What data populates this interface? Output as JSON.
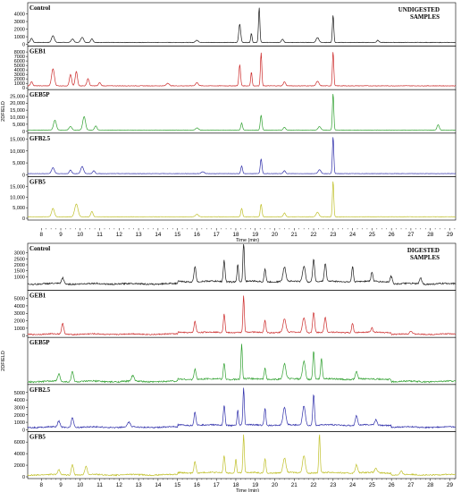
{
  "x_axis": {
    "ticks": [
      "8",
      "9",
      "10",
      "11",
      "12",
      "13",
      "14",
      "15",
      "16",
      "17",
      "18",
      "19",
      "20",
      "21",
      "22",
      "23",
      "24",
      "25",
      "26",
      "27",
      "28",
      "29"
    ],
    "min": 7.3,
    "max": 29.3
  },
  "groups": [
    {
      "id": "undigested",
      "title_lines": [
        "UNDIGESTED",
        "SAMPLES"
      ],
      "x_label": "Time (min)",
      "y_axis_label": "2DFIELD",
      "panels": [
        {
          "name": "Control",
          "color": "#1a1a1a",
          "ymax": 5000,
          "yticks": [
            "0",
            "1000",
            "2000",
            "3000",
            "4000"
          ],
          "yvals": [
            0,
            1000,
            2000,
            3000,
            4000
          ],
          "baseline": 250,
          "peaks": [
            [
              7.5,
              550,
              0.08
            ],
            [
              8.6,
              900,
              0.1
            ],
            [
              9.6,
              450,
              0.1
            ],
            [
              10.1,
              700,
              0.1
            ],
            [
              10.6,
              500,
              0.08
            ],
            [
              16.0,
              300,
              0.1
            ],
            [
              18.2,
              2400,
              0.07
            ],
            [
              18.8,
              1200,
              0.05
            ],
            [
              19.2,
              4600,
              0.05
            ],
            [
              20.4,
              450,
              0.08
            ],
            [
              22.2,
              650,
              0.1
            ],
            [
              23.0,
              3600,
              0.05
            ],
            [
              25.3,
              300,
              0.08
            ]
          ]
        },
        {
          "name": "GEB1",
          "color": "#cc2a2a",
          "ymax": 8500,
          "yticks": [
            "0",
            "1000",
            "2000",
            "3000",
            "4000",
            "5000",
            "6000",
            "7000",
            "8000"
          ],
          "yvals": [
            0,
            1000,
            2000,
            3000,
            4000,
            5000,
            6000,
            7000,
            8000
          ],
          "baseline": 450,
          "peaks": [
            [
              7.5,
              900,
              0.08
            ],
            [
              8.6,
              3800,
              0.1
            ],
            [
              9.5,
              2500,
              0.08
            ],
            [
              9.8,
              3200,
              0.08
            ],
            [
              10.4,
              1600,
              0.08
            ],
            [
              11.0,
              700,
              0.08
            ],
            [
              14.5,
              600,
              0.1
            ],
            [
              16.0,
              700,
              0.1
            ],
            [
              18.2,
              4700,
              0.06
            ],
            [
              18.8,
              3100,
              0.05
            ],
            [
              19.3,
              7400,
              0.05
            ],
            [
              20.5,
              900,
              0.08
            ],
            [
              22.2,
              1000,
              0.1
            ],
            [
              23.0,
              7600,
              0.05
            ]
          ]
        },
        {
          "name": "GEB5P",
          "color": "#2fa02f",
          "ymax": 27000,
          "yticks": [
            "0",
            "5,000",
            "10,000",
            "15,000",
            "20,000",
            "25,000"
          ],
          "yvals": [
            0,
            5000,
            10000,
            15000,
            20000,
            25000
          ],
          "baseline": 900,
          "peaks": [
            [
              8.7,
              7000,
              0.1
            ],
            [
              9.5,
              2500,
              0.1
            ],
            [
              10.2,
              9500,
              0.1
            ],
            [
              10.8,
              3000,
              0.08
            ],
            [
              16.0,
              1500,
              0.1
            ],
            [
              18.3,
              5000,
              0.06
            ],
            [
              19.3,
              10500,
              0.06
            ],
            [
              20.5,
              2000,
              0.08
            ],
            [
              22.3,
              2500,
              0.1
            ],
            [
              23.0,
              26000,
              0.05
            ],
            [
              28.4,
              3800,
              0.08
            ]
          ]
        },
        {
          "name": "GFB2.5",
          "color": "#2e2eaa",
          "ymax": 16000,
          "yticks": [
            "0",
            "5,000",
            "10,000",
            "15,000"
          ],
          "yvals": [
            0,
            5000,
            10000,
            15000
          ],
          "baseline": 500,
          "peaks": [
            [
              8.6,
              2500,
              0.1
            ],
            [
              9.5,
              1500,
              0.08
            ],
            [
              10.1,
              3000,
              0.1
            ],
            [
              10.7,
              1200,
              0.08
            ],
            [
              16.3,
              800,
              0.1
            ],
            [
              18.3,
              3200,
              0.06
            ],
            [
              19.3,
              6200,
              0.06
            ],
            [
              20.5,
              1200,
              0.08
            ],
            [
              22.3,
              1600,
              0.1
            ],
            [
              23.0,
              15500,
              0.05
            ]
          ]
        },
        {
          "name": "GFB5",
          "color": "#c0c02a",
          "ymax": 18000,
          "yticks": [
            "0",
            "5,000",
            "10,000",
            "15,000"
          ],
          "yvals": [
            0,
            5000,
            10000,
            15000
          ],
          "baseline": 700,
          "peaks": [
            [
              8.6,
              4000,
              0.1
            ],
            [
              9.8,
              6000,
              0.12
            ],
            [
              10.6,
              2500,
              0.08
            ],
            [
              16.0,
              1200,
              0.1
            ],
            [
              18.3,
              4000,
              0.06
            ],
            [
              19.3,
              6000,
              0.06
            ],
            [
              20.5,
              1800,
              0.08
            ],
            [
              22.2,
              2200,
              0.1
            ],
            [
              23.0,
              17000,
              0.05
            ]
          ]
        }
      ]
    },
    {
      "id": "digested",
      "title_lines": [
        "DIGESTED",
        "SAMPLES"
      ],
      "x_label": "Time (min)",
      "y_axis_label": "2DFIELD",
      "panels": [
        {
          "name": "Control",
          "color": "#1a1a1a",
          "ymax": 3500,
          "yticks": [
            "1000",
            "1500",
            "2000",
            "2500",
            "3000"
          ],
          "yvals": [
            1000,
            1500,
            2000,
            2500,
            3000
          ],
          "baseline": 400,
          "noise": 120,
          "peaks": [
            [
              9.1,
              500,
              0.08
            ],
            [
              15.9,
              1300,
              0.07
            ],
            [
              17.4,
              1800,
              0.06
            ],
            [
              18.1,
              1500,
              0.05
            ],
            [
              18.4,
              3400,
              0.05
            ],
            [
              19.5,
              1100,
              0.06
            ],
            [
              20.5,
              1200,
              0.1
            ],
            [
              21.5,
              1300,
              0.1
            ],
            [
              22.0,
              1900,
              0.07
            ],
            [
              22.6,
              1500,
              0.07
            ],
            [
              24.0,
              1300,
              0.06
            ],
            [
              25.0,
              800,
              0.06
            ],
            [
              26.0,
              600,
              0.08
            ],
            [
              27.5,
              500,
              0.08
            ]
          ]
        },
        {
          "name": "GEB1",
          "color": "#cc2a2a",
          "ymax": 5600,
          "yticks": [
            "0",
            "1000",
            "2000",
            "3000",
            "4000",
            "5000"
          ],
          "yvals": [
            0,
            1000,
            2000,
            3000,
            4000,
            5000
          ],
          "baseline": 200,
          "noise": 150,
          "peaks": [
            [
              9.1,
              1400,
              0.08
            ],
            [
              15.9,
              1500,
              0.07
            ],
            [
              17.4,
              2500,
              0.06
            ],
            [
              18.4,
              4900,
              0.05
            ],
            [
              19.5,
              1700,
              0.06
            ],
            [
              20.5,
              1800,
              0.1
            ],
            [
              21.5,
              2000,
              0.1
            ],
            [
              22.0,
              2700,
              0.07
            ],
            [
              22.6,
              2000,
              0.07
            ],
            [
              24.0,
              1300,
              0.06
            ],
            [
              25.0,
              600,
              0.06
            ],
            [
              27.0,
              400,
              0.08
            ]
          ]
        },
        {
          "name": "GEB5P",
          "color": "#2fa02f",
          "ymax": 14000,
          "yticks": [],
          "yvals": [],
          "baseline": 400,
          "noise": 500,
          "peaks": [
            [
              8.9,
              2500,
              0.08
            ],
            [
              9.6,
              3500,
              0.08
            ],
            [
              12.7,
              1800,
              0.1
            ],
            [
              15.9,
              3500,
              0.07
            ],
            [
              17.4,
              5500,
              0.06
            ],
            [
              18.3,
              12000,
              0.05
            ],
            [
              19.5,
              4000,
              0.06
            ],
            [
              20.5,
              5000,
              0.1
            ],
            [
              21.5,
              6000,
              0.1
            ],
            [
              22.0,
              9500,
              0.06
            ],
            [
              22.4,
              7000,
              0.06
            ],
            [
              24.2,
              2500,
              0.08
            ]
          ]
        },
        {
          "name": "GFB2.5",
          "color": "#2e2eaa",
          "ymax": 5600,
          "yticks": [
            "0",
            "1000",
            "2000",
            "3000",
            "4000",
            "5000"
          ],
          "yvals": [
            0,
            1000,
            2000,
            3000,
            4000,
            5000
          ],
          "baseline": 350,
          "noise": 170,
          "peaks": [
            [
              8.9,
              800,
              0.08
            ],
            [
              9.6,
              1400,
              0.08
            ],
            [
              12.5,
              600,
              0.1
            ],
            [
              15.9,
              1800,
              0.07
            ],
            [
              17.4,
              2700,
              0.06
            ],
            [
              18.1,
              2000,
              0.05
            ],
            [
              18.4,
              5000,
              0.05
            ],
            [
              19.5,
              2300,
              0.06
            ],
            [
              20.5,
              2300,
              0.1
            ],
            [
              21.5,
              2600,
              0.1
            ],
            [
              22.0,
              4200,
              0.06
            ],
            [
              24.2,
              1300,
              0.08
            ],
            [
              25.2,
              700,
              0.08
            ]
          ]
        },
        {
          "name": "GFB5",
          "color": "#c0c02a",
          "ymax": 7200,
          "yticks": [
            "0",
            "2000",
            "4000",
            "6000"
          ],
          "yvals": [
            0,
            2000,
            4000,
            6000
          ],
          "baseline": 350,
          "noise": 220,
          "peaks": [
            [
              8.9,
              800,
              0.08
            ],
            [
              9.6,
              1800,
              0.08
            ],
            [
              10.3,
              1500,
              0.08
            ],
            [
              15.9,
              2000,
              0.07
            ],
            [
              17.4,
              3000,
              0.06
            ],
            [
              18.0,
              2500,
              0.05
            ],
            [
              18.4,
              6500,
              0.05
            ],
            [
              19.5,
              2500,
              0.06
            ],
            [
              20.5,
              2500,
              0.1
            ],
            [
              21.5,
              3000,
              0.1
            ],
            [
              22.3,
              6800,
              0.05
            ],
            [
              24.2,
              1400,
              0.08
            ],
            [
              25.2,
              800,
              0.08
            ],
            [
              26.5,
              600,
              0.08
            ]
          ]
        }
      ]
    }
  ],
  "chart_data": {
    "type": "line",
    "x_unit": "Time (min)",
    "note_titles": [
      "UNDIGESTED SAMPLES",
      "DIGESTED SAMPLES"
    ],
    "series_names": [
      "Control",
      "GEB1",
      "GEB5P",
      "GFB2.5",
      "GFB5"
    ]
  }
}
